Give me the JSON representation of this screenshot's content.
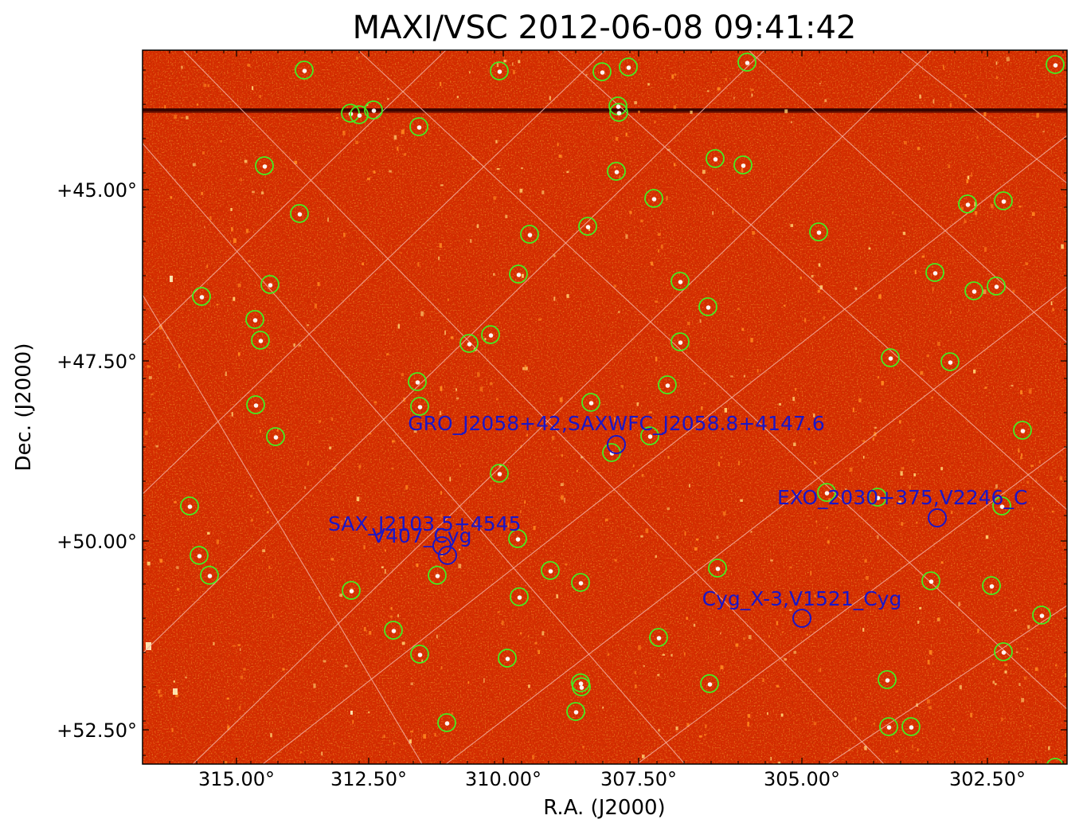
{
  "figure": {
    "title": "MAXI/VSC 2012-06-08 09:41:42",
    "xlabel": "R.A. (J2000)",
    "ylabel": "Dec. (J2000)",
    "colors": {
      "background": "#d42c00",
      "grid": "#f3b0a0",
      "source_circle": "#44ee22",
      "catalog": "#1a16c8",
      "star_band": "#2a0000"
    }
  },
  "axes": {
    "x_ticks": [
      {
        "value": 315.0,
        "label": "315.00°"
      },
      {
        "value": 312.5,
        "label": "312.50°"
      },
      {
        "value": 310.0,
        "label": "310.00°"
      },
      {
        "value": 307.5,
        "label": "307.50°"
      },
      {
        "value": 305.0,
        "label": "305.00°"
      },
      {
        "value": 302.5,
        "label": "302.50°"
      }
    ],
    "y_ticks": [
      {
        "value": 45.0,
        "label": "+45.00°"
      },
      {
        "value": 47.5,
        "label": "+47.50°"
      },
      {
        "value": 50.0,
        "label": "+50.00°"
      },
      {
        "value": 52.5,
        "label": "+52.50°"
      }
    ]
  },
  "catalog_labels": [
    {
      "id": "gro",
      "text": "GRO_J2058+42,SAXWFC_J2058.8+4147.6"
    },
    {
      "id": "exo",
      "text": "EXO_2030+375,V2246_C"
    },
    {
      "id": "sax",
      "text": "SAX_J2103.5+4545"
    },
    {
      "id": "v407",
      "text": "V407_Cyg"
    },
    {
      "id": "cygx3",
      "text": "Cyg_X-3,V1521_Cyg"
    }
  ]
}
